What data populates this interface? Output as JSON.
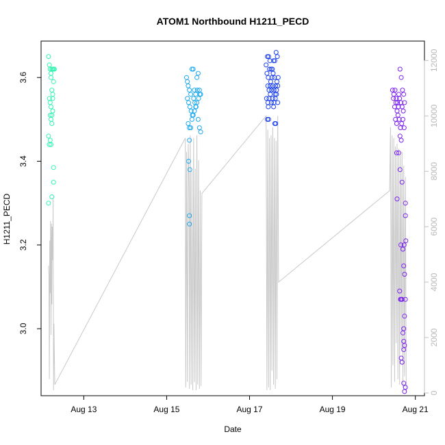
{
  "chart_data": {
    "type": "scatter",
    "title": "ATOM1 Northbound H1211_PECD",
    "xlabel": "Date",
    "ylabel": "H1211_PECD",
    "x_axis": {
      "unit": "day of August",
      "range": [
        11.97,
        21.22
      ],
      "ticks": [
        13,
        15,
        17,
        19,
        21
      ],
      "tick_labels": [
        "Aug 13",
        "Aug 15",
        "Aug 17",
        "Aug 19",
        "Aug 21"
      ]
    },
    "y_left": {
      "range": [
        2.84,
        3.687
      ],
      "ticks": [
        3.0,
        3.2,
        3.4,
        3.6
      ],
      "tick_labels": [
        "3.0",
        "3.2",
        "3.4",
        "3.6"
      ]
    },
    "y_right": {
      "range": [
        -100,
        12700
      ],
      "ticks": [
        0,
        2000,
        4000,
        6000,
        8000,
        10000,
        12000
      ],
      "tick_labels": [
        "0",
        "2000",
        "4000",
        "6000",
        "8000",
        "10000",
        "12000"
      ],
      "color": "#c0c0c0"
    },
    "line_color": "#c8c8c8",
    "point_colors": {
      "cluster1": "#2ff5b0",
      "cluster2": "#1aa8f0",
      "cluster3": "#1a3ff0",
      "cluster4": "#7a20f0"
    },
    "series": [
      {
        "values": [
          [
            12.15,
            3.65
          ],
          [
            12.17,
            3.63
          ],
          [
            12.19,
            3.62
          ],
          [
            12.21,
            3.61
          ],
          [
            12.23,
            3.62
          ],
          [
            12.25,
            3.62
          ],
          [
            12.27,
            3.62
          ],
          [
            12.29,
            3.62
          ],
          [
            12.21,
            3.6
          ],
          [
            12.23,
            3.57
          ],
          [
            12.25,
            3.56
          ],
          [
            12.27,
            3.59
          ],
          [
            12.17,
            3.55
          ],
          [
            12.19,
            3.54
          ],
          [
            12.21,
            3.53
          ],
          [
            12.23,
            3.51
          ],
          [
            12.25,
            3.55
          ],
          [
            12.19,
            3.51
          ],
          [
            12.21,
            3.5
          ],
          [
            12.23,
            3.49
          ],
          [
            12.25,
            3.52
          ],
          [
            12.15,
            3.46
          ],
          [
            12.17,
            3.44
          ],
          [
            12.19,
            3.45
          ],
          [
            12.21,
            3.44
          ],
          [
            12.27,
            3.385
          ],
          [
            12.27,
            3.35
          ],
          [
            12.23,
            3.315
          ],
          [
            12.15,
            3.3
          ]
        ]
      },
      {
        "values": [
          [
            15.48,
            3.6
          ],
          [
            15.5,
            3.59
          ],
          [
            15.52,
            3.58
          ],
          [
            15.55,
            3.57
          ],
          [
            15.58,
            3.56
          ],
          [
            15.61,
            3.62
          ],
          [
            15.64,
            3.62
          ],
          [
            15.67,
            3.57
          ],
          [
            15.7,
            3.56
          ],
          [
            15.73,
            3.6
          ],
          [
            15.76,
            3.61
          ],
          [
            15.79,
            3.57
          ],
          [
            15.82,
            3.56
          ],
          [
            15.5,
            3.55
          ],
          [
            15.53,
            3.54
          ],
          [
            15.56,
            3.53
          ],
          [
            15.59,
            3.52
          ],
          [
            15.62,
            3.51
          ],
          [
            15.65,
            3.55
          ],
          [
            15.68,
            3.54
          ],
          [
            15.71,
            3.53
          ],
          [
            15.74,
            3.57
          ],
          [
            15.77,
            3.55
          ],
          [
            15.8,
            3.56
          ],
          [
            15.52,
            3.49
          ],
          [
            15.55,
            3.48
          ],
          [
            15.58,
            3.48
          ],
          [
            15.61,
            3.5
          ],
          [
            15.64,
            3.51
          ],
          [
            15.67,
            3.52
          ],
          [
            15.7,
            3.53
          ],
          [
            15.73,
            3.54
          ],
          [
            15.76,
            3.5
          ],
          [
            15.79,
            3.48
          ],
          [
            15.82,
            3.47
          ],
          [
            15.55,
            3.45
          ],
          [
            15.53,
            3.4
          ],
          [
            15.56,
            3.38
          ],
          [
            15.55,
            3.27
          ],
          [
            15.55,
            3.25
          ]
        ]
      },
      {
        "values": [
          [
            17.4,
            3.63
          ],
          [
            17.43,
            3.65
          ],
          [
            17.46,
            3.65
          ],
          [
            17.49,
            3.64
          ],
          [
            17.52,
            3.62
          ],
          [
            17.55,
            3.62
          ],
          [
            17.58,
            3.64
          ],
          [
            17.61,
            3.64
          ],
          [
            17.64,
            3.66
          ],
          [
            17.67,
            3.65
          ],
          [
            17.42,
            3.61
          ],
          [
            17.45,
            3.6
          ],
          [
            17.48,
            3.62
          ],
          [
            17.51,
            3.59
          ],
          [
            17.54,
            3.6
          ],
          [
            17.57,
            3.61
          ],
          [
            17.6,
            3.6
          ],
          [
            17.63,
            3.58
          ],
          [
            17.66,
            3.59
          ],
          [
            17.69,
            3.6
          ],
          [
            17.44,
            3.58
          ],
          [
            17.47,
            3.57
          ],
          [
            17.5,
            3.58
          ],
          [
            17.53,
            3.57
          ],
          [
            17.56,
            3.58
          ],
          [
            17.59,
            3.57
          ],
          [
            17.62,
            3.56
          ],
          [
            17.65,
            3.57
          ],
          [
            17.68,
            3.58
          ],
          [
            17.41,
            3.55
          ],
          [
            17.44,
            3.54
          ],
          [
            17.47,
            3.55
          ],
          [
            17.5,
            3.56
          ],
          [
            17.53,
            3.54
          ],
          [
            17.56,
            3.55
          ],
          [
            17.59,
            3.54
          ],
          [
            17.62,
            3.55
          ],
          [
            17.65,
            3.56
          ],
          [
            17.68,
            3.54
          ],
          [
            17.45,
            3.53
          ],
          [
            17.58,
            3.53
          ],
          [
            17.43,
            3.5
          ],
          [
            17.46,
            3.5
          ],
          [
            17.61,
            3.49
          ],
          [
            17.63,
            3.49
          ]
        ]
      },
      {
        "values": [
          [
            20.45,
            3.57
          ],
          [
            20.48,
            3.56
          ],
          [
            20.51,
            3.57
          ],
          [
            20.54,
            3.55
          ],
          [
            20.57,
            3.54
          ],
          [
            20.6,
            3.56
          ],
          [
            20.63,
            3.62
          ],
          [
            20.66,
            3.6
          ],
          [
            20.69,
            3.57
          ],
          [
            20.72,
            3.56
          ],
          [
            20.47,
            3.55
          ],
          [
            20.5,
            3.53
          ],
          [
            20.53,
            3.54
          ],
          [
            20.56,
            3.52
          ],
          [
            20.59,
            3.53
          ],
          [
            20.62,
            3.55
          ],
          [
            20.65,
            3.54
          ],
          [
            20.68,
            3.53
          ],
          [
            20.71,
            3.52
          ],
          [
            20.74,
            3.54
          ],
          [
            20.52,
            3.5
          ],
          [
            20.55,
            3.49
          ],
          [
            20.58,
            3.51
          ],
          [
            20.61,
            3.5
          ],
          [
            20.64,
            3.48
          ],
          [
            20.67,
            3.49
          ],
          [
            20.7,
            3.5
          ],
          [
            20.73,
            3.48
          ],
          [
            20.63,
            3.46
          ],
          [
            20.66,
            3.45
          ],
          [
            20.6,
            3.42
          ],
          [
            20.55,
            3.42
          ],
          [
            20.63,
            3.38
          ],
          [
            20.68,
            3.35
          ],
          [
            20.56,
            3.31
          ],
          [
            20.76,
            3.3
          ],
          [
            20.76,
            3.27
          ],
          [
            20.65,
            3.2
          ],
          [
            20.73,
            3.2
          ],
          [
            20.7,
            3.19
          ],
          [
            20.77,
            3.21
          ],
          [
            20.72,
            3.15
          ],
          [
            20.74,
            3.13
          ],
          [
            20.62,
            3.09
          ],
          [
            20.64,
            3.07
          ],
          [
            20.66,
            3.07
          ],
          [
            20.68,
            3.07
          ],
          [
            20.76,
            3.07
          ],
          [
            20.74,
            3.03
          ],
          [
            20.72,
            3.0
          ],
          [
            20.7,
            2.99
          ],
          [
            20.72,
            2.97
          ],
          [
            20.74,
            2.96
          ],
          [
            20.72,
            2.95
          ],
          [
            20.66,
            2.93
          ],
          [
            20.68,
            2.92
          ],
          [
            20.72,
            2.87
          ],
          [
            20.76,
            2.86
          ],
          [
            20.74,
            2.85
          ]
        ]
      }
    ],
    "line_series": {
      "description": "secondary series on right axis",
      "values": [
        [
          12.15,
          4600
        ],
        [
          12.16,
          4200
        ],
        [
          12.17,
          500
        ],
        [
          12.18,
          5500
        ],
        [
          12.19,
          3600
        ],
        [
          12.2,
          6200
        ],
        [
          12.21,
          2100
        ],
        [
          12.22,
          6100
        ],
        [
          12.23,
          3200
        ],
        [
          12.24,
          6000
        ],
        [
          12.25,
          4800
        ],
        [
          12.26,
          7000
        ],
        [
          12.27,
          100
        ],
        [
          12.28,
          2500
        ],
        [
          12.3,
          300
        ],
        [
          15.45,
          9200
        ],
        [
          15.46,
          200
        ],
        [
          15.48,
          8700
        ],
        [
          15.5,
          400
        ],
        [
          15.52,
          9000
        ],
        [
          15.54,
          7500
        ],
        [
          15.55,
          150
        ],
        [
          15.57,
          9300
        ],
        [
          15.59,
          300
        ],
        [
          15.61,
          8000
        ],
        [
          15.63,
          100
        ],
        [
          15.65,
          9200
        ],
        [
          15.67,
          400
        ],
        [
          15.69,
          8100
        ],
        [
          15.71,
          100
        ],
        [
          15.73,
          9300
        ],
        [
          15.75,
          300
        ],
        [
          15.77,
          8400
        ],
        [
          15.79,
          150
        ],
        [
          15.81,
          7300
        ],
        [
          15.83,
          250
        ],
        [
          15.85,
          7200
        ],
        [
          17.4,
          10000
        ],
        [
          17.42,
          100
        ],
        [
          17.44,
          9500
        ],
        [
          17.46,
          200
        ],
        [
          17.48,
          9200
        ],
        [
          17.5,
          100
        ],
        [
          17.52,
          9300
        ],
        [
          17.54,
          800
        ],
        [
          17.56,
          9600
        ],
        [
          17.58,
          300
        ],
        [
          17.6,
          9200
        ],
        [
          17.62,
          150
        ],
        [
          17.64,
          9100
        ],
        [
          17.66,
          500
        ],
        [
          17.68,
          10000
        ],
        [
          17.7,
          4000
        ],
        [
          20.38,
          7300
        ],
        [
          20.4,
          9600
        ],
        [
          20.42,
          200
        ],
        [
          20.44,
          9300
        ],
        [
          20.46,
          1000
        ],
        [
          20.48,
          9200
        ],
        [
          20.5,
          400
        ],
        [
          20.52,
          8900
        ],
        [
          20.54,
          1800
        ],
        [
          20.56,
          9000
        ],
        [
          20.58,
          500
        ],
        [
          20.6,
          8800
        ],
        [
          20.62,
          300
        ],
        [
          20.64,
          8600
        ],
        [
          20.66,
          1600
        ],
        [
          20.68,
          8700
        ],
        [
          20.7,
          200
        ],
        [
          20.72,
          8200
        ],
        [
          20.74,
          600
        ],
        [
          20.76,
          7800
        ],
        [
          20.78,
          0
        ]
      ]
    }
  }
}
